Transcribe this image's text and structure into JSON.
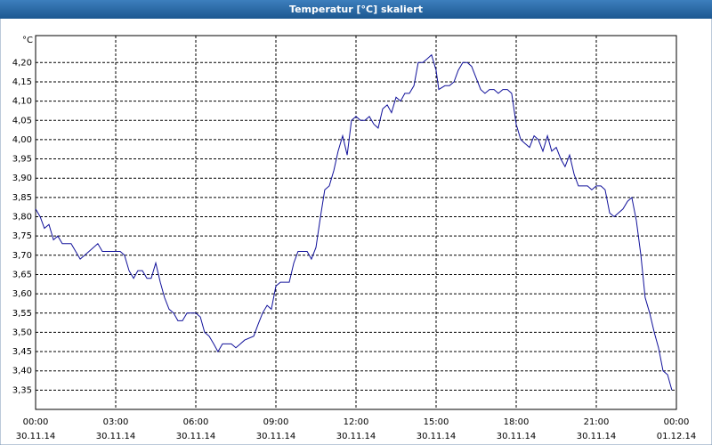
{
  "chart_data": {
    "type": "line",
    "title": "Temperatur [°C] skaliert",
    "ylabel": "°C",
    "x": [
      0,
      0.17,
      0.33,
      0.5,
      0.67,
      0.83,
      1,
      1.33,
      1.67,
      2,
      2.33,
      2.5,
      2.83,
      3,
      3.17,
      3.33,
      3.5,
      3.67,
      3.83,
      4,
      4.17,
      4.33,
      4.5,
      4.67,
      4.83,
      5,
      5.17,
      5.33,
      5.5,
      5.67,
      5.83,
      6,
      6.17,
      6.33,
      6.5,
      6.67,
      6.83,
      7,
      7.33,
      7.5,
      7.67,
      7.83,
      8.17,
      8.33,
      8.5,
      8.67,
      8.83,
      9,
      9.17,
      9.33,
      9.5,
      9.67,
      9.83,
      10.17,
      10.33,
      10.5,
      10.67,
      10.83,
      11,
      11.17,
      11.33,
      11.5,
      11.67,
      11.83,
      12,
      12.17,
      12.33,
      12.5,
      12.67,
      12.83,
      13,
      13.17,
      13.33,
      13.5,
      13.67,
      13.83,
      14,
      14.17,
      14.33,
      14.5,
      14.67,
      14.83,
      15,
      15.1,
      15.33,
      15.5,
      15.67,
      15.83,
      16,
      16.17,
      16.33,
      16.5,
      16.67,
      16.83,
      17,
      17.17,
      17.33,
      17.5,
      17.67,
      17.83,
      18,
      18.17,
      18.33,
      18.5,
      18.67,
      18.83,
      19,
      19.17,
      19.33,
      19.5,
      19.67,
      19.83,
      20,
      20.17,
      20.33,
      20.5,
      20.67,
      20.83,
      21,
      21.17,
      21.33,
      21.5,
      21.67,
      21.83,
      22,
      22.17,
      22.33,
      22.5,
      22.67,
      22.83,
      23,
      23.17,
      23.33,
      23.5,
      23.67,
      23.83
    ],
    "series": [
      {
        "name": "Temperatur",
        "color": "#10109a",
        "values": [
          3.82,
          3.8,
          3.77,
          3.78,
          3.74,
          3.75,
          3.73,
          3.73,
          3.69,
          3.71,
          3.73,
          3.71,
          3.71,
          3.71,
          3.71,
          3.7,
          3.66,
          3.64,
          3.66,
          3.66,
          3.64,
          3.64,
          3.68,
          3.63,
          3.59,
          3.56,
          3.55,
          3.53,
          3.53,
          3.55,
          3.55,
          3.55,
          3.54,
          3.5,
          3.49,
          3.47,
          3.45,
          3.47,
          3.47,
          3.46,
          3.47,
          3.48,
          3.49,
          3.52,
          3.55,
          3.57,
          3.56,
          3.62,
          3.63,
          3.63,
          3.63,
          3.68,
          3.71,
          3.71,
          3.69,
          3.72,
          3.8,
          3.87,
          3.88,
          3.92,
          3.97,
          4.01,
          3.96,
          4.05,
          4.06,
          4.05,
          4.05,
          4.06,
          4.04,
          4.03,
          4.08,
          4.09,
          4.07,
          4.11,
          4.1,
          4.12,
          4.12,
          4.14,
          4.2,
          4.2,
          4.21,
          4.22,
          4.18,
          4.13,
          4.14,
          4.14,
          4.15,
          4.18,
          4.2,
          4.2,
          4.19,
          4.16,
          4.13,
          4.12,
          4.13,
          4.13,
          4.12,
          4.13,
          4.13,
          4.12,
          4.04,
          4.0,
          3.99,
          3.98,
          4.01,
          4.0,
          3.97,
          4.01,
          3.97,
          3.98,
          3.95,
          3.93,
          3.96,
          3.91,
          3.88,
          3.88,
          3.88,
          3.87,
          3.88,
          3.88,
          3.87,
          3.81,
          3.8,
          3.81,
          3.82,
          3.84,
          3.85,
          3.79,
          3.7,
          3.59,
          3.55,
          3.5,
          3.46,
          3.4,
          3.39,
          3.35
        ]
      }
    ],
    "xlim": [
      0,
      24
    ],
    "xticks": [
      {
        "value": 0,
        "label": "00:00\n30.11.14"
      },
      {
        "value": 3,
        "label": "03:00\n30.11.14"
      },
      {
        "value": 6,
        "label": "06:00\n30.11.14"
      },
      {
        "value": 9,
        "label": "09:00\n30.11.14"
      },
      {
        "value": 12,
        "label": "12:00\n30.11.14"
      },
      {
        "value": 15,
        "label": "15:00\n30.11.14"
      },
      {
        "value": 18,
        "label": "18:00\n30.11.14"
      },
      {
        "value": 21,
        "label": "21:00\n30.11.14"
      },
      {
        "value": 24,
        "label": "00:00\n01.12.14"
      }
    ],
    "ylim": [
      3.3,
      4.27
    ],
    "yticks": [
      {
        "value": 3.35,
        "label": "3,35"
      },
      {
        "value": 3.4,
        "label": "3,40"
      },
      {
        "value": 3.45,
        "label": "3,45"
      },
      {
        "value": 3.5,
        "label": "3,50"
      },
      {
        "value": 3.55,
        "label": "3,55"
      },
      {
        "value": 3.6,
        "label": "3,60"
      },
      {
        "value": 3.65,
        "label": "3,65"
      },
      {
        "value": 3.7,
        "label": "3,70"
      },
      {
        "value": 3.75,
        "label": "3,75"
      },
      {
        "value": 3.8,
        "label": "3,80"
      },
      {
        "value": 3.85,
        "label": "3,85"
      },
      {
        "value": 3.9,
        "label": "3,90"
      },
      {
        "value": 3.95,
        "label": "3,95"
      },
      {
        "value": 4.0,
        "label": "4,00"
      },
      {
        "value": 4.05,
        "label": "4,05"
      },
      {
        "value": 4.1,
        "label": "4,10"
      },
      {
        "value": 4.15,
        "label": "4,15"
      },
      {
        "value": 4.2,
        "label": "4,20"
      }
    ],
    "grid": true
  }
}
